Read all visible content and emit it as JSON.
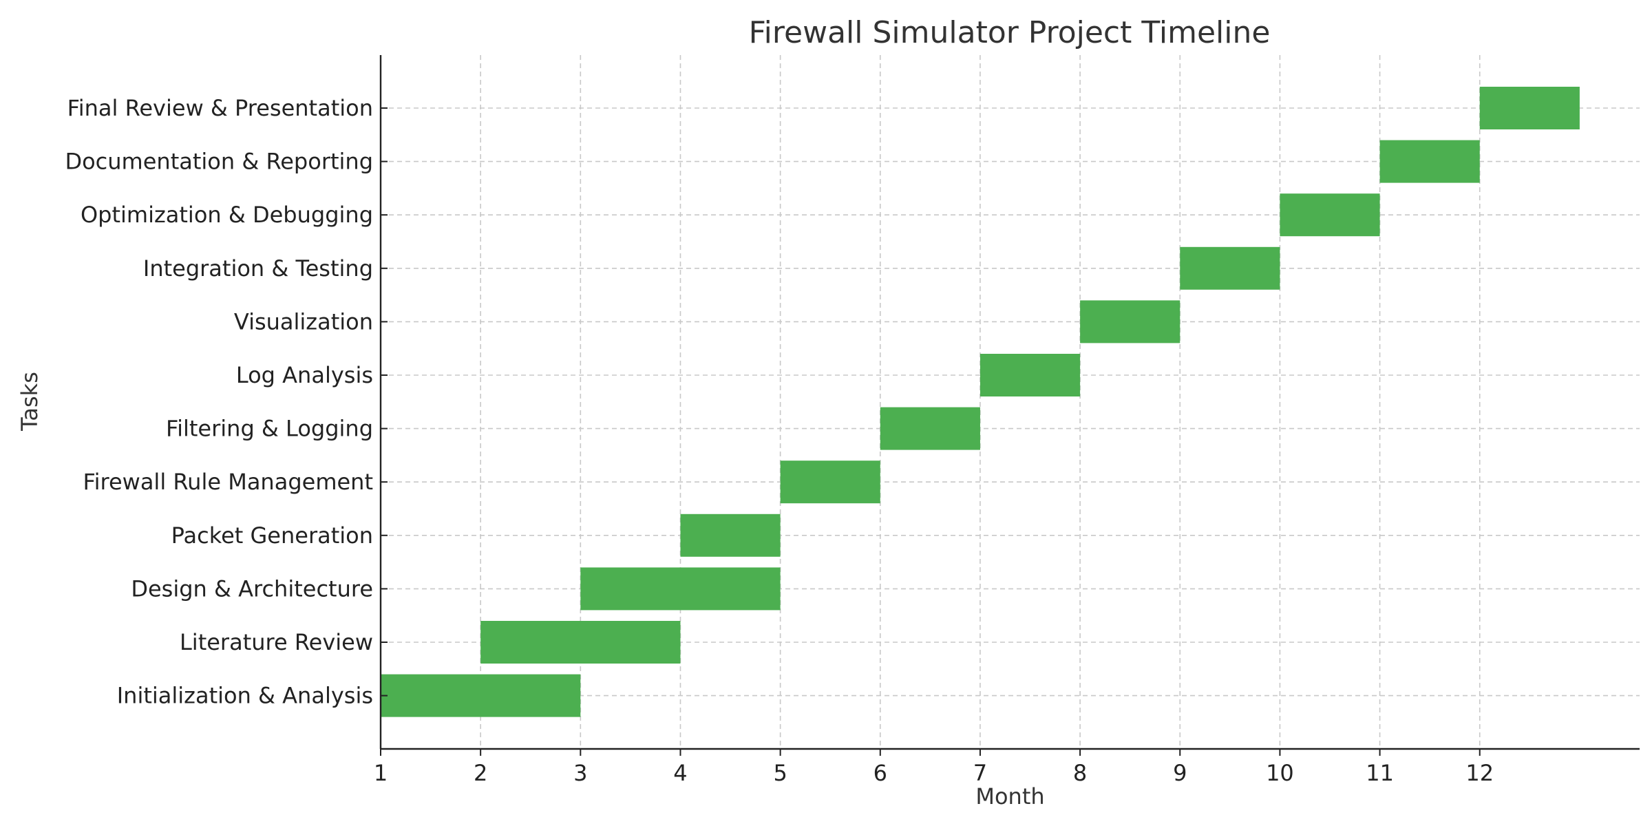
{
  "chart_data": {
    "type": "gantt",
    "title": "Firewall Simulator Project Timeline",
    "xlabel": "Month",
    "ylabel": "Tasks",
    "xlim": [
      1,
      13.6
    ],
    "x_ticks": [
      1,
      2,
      3,
      4,
      5,
      6,
      7,
      8,
      9,
      10,
      11,
      12
    ],
    "grid": true,
    "bar_color": "#4caf50",
    "tasks": [
      {
        "label": "Initialization & Analysis",
        "start": 1,
        "end": 3
      },
      {
        "label": "Literature Review",
        "start": 2,
        "end": 4
      },
      {
        "label": "Design & Architecture",
        "start": 3,
        "end": 5
      },
      {
        "label": "Packet Generation",
        "start": 4,
        "end": 5
      },
      {
        "label": "Firewall Rule Management",
        "start": 5,
        "end": 6
      },
      {
        "label": "Filtering & Logging",
        "start": 6,
        "end": 7
      },
      {
        "label": "Log Analysis",
        "start": 7,
        "end": 8
      },
      {
        "label": "Visualization",
        "start": 8,
        "end": 9
      },
      {
        "label": "Integration & Testing",
        "start": 9,
        "end": 10
      },
      {
        "label": "Optimization & Debugging",
        "start": 10,
        "end": 11
      },
      {
        "label": "Documentation & Reporting",
        "start": 11,
        "end": 12
      },
      {
        "label": "Final Review & Presentation",
        "start": 12,
        "end": 13
      }
    ]
  }
}
